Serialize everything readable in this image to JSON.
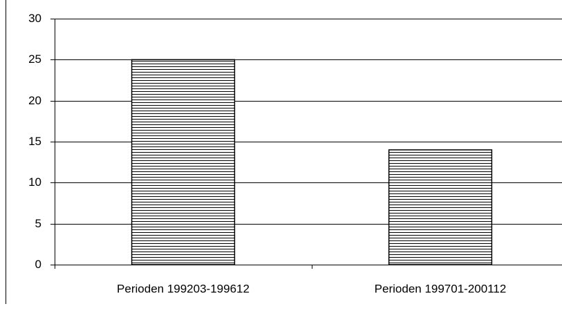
{
  "chart_data": {
    "type": "bar",
    "categories": [
      "Perioden 199203-199612",
      "Perioden 199701-200112"
    ],
    "values": [
      25,
      14
    ],
    "color": "#000000",
    "ylim": [
      0,
      30
    ],
    "yticks": [
      0,
      5,
      10,
      15,
      20,
      25,
      30
    ],
    "grid": true
  }
}
